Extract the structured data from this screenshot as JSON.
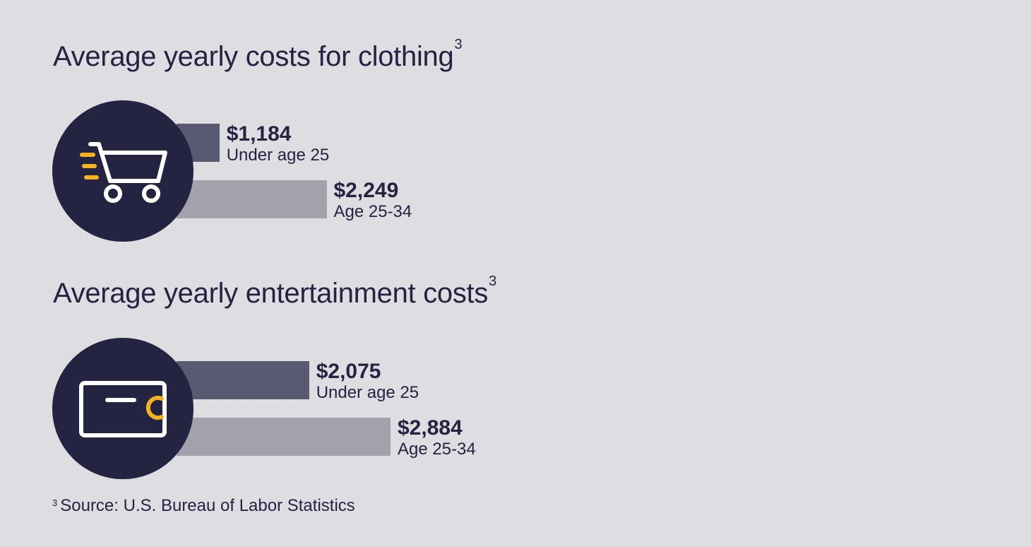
{
  "chart_data": [
    {
      "type": "bar",
      "title": "Average yearly costs for clothing",
      "title_footnote_marker": "3",
      "icon": "shopping-cart-icon",
      "categories": [
        "Under age 25",
        "Age 25-34"
      ],
      "values": [
        1184,
        2249
      ],
      "value_labels": [
        "$1,184",
        "$2,249"
      ],
      "xlim": [
        0,
        2884
      ]
    },
    {
      "type": "bar",
      "title": "Average yearly entertainment costs",
      "title_footnote_marker": "3",
      "icon": "ticket-icon",
      "categories": [
        "Under age 25",
        "Age 25-34"
      ],
      "values": [
        2075,
        2884
      ],
      "value_labels": [
        "$2,075",
        "$2,884"
      ],
      "xlim": [
        0,
        2884
      ]
    }
  ],
  "footnote": {
    "marker": "3",
    "text": "Source: U.S. Bureau of Labor Statistics"
  },
  "colors": {
    "background": "#dedde2",
    "circle": "#242442",
    "bar_under_25": "#595a71",
    "bar_25_34": "#a2a1ac",
    "icon_accent": "#f5b323",
    "icon_stroke": "#ffffff"
  }
}
